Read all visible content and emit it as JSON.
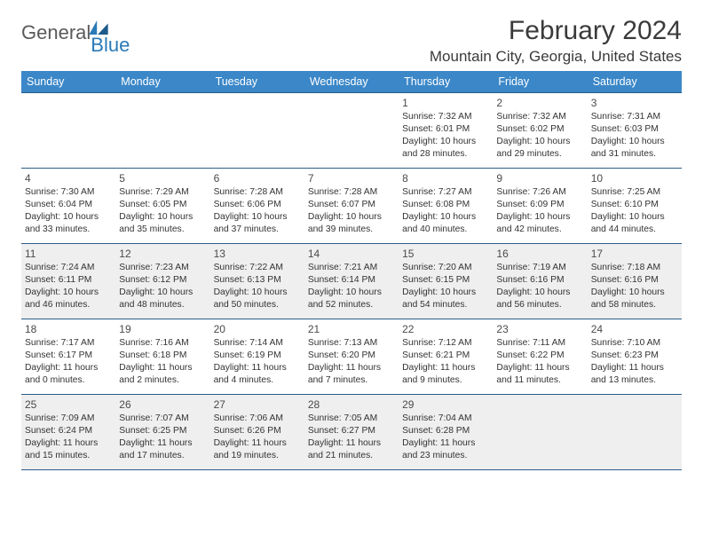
{
  "brand": {
    "name_part1": "General",
    "name_part2": "Blue"
  },
  "header": {
    "title": "February 2024",
    "location": "Mountain City, Georgia, United States"
  },
  "colors": {
    "header_bg": "#3b87c8",
    "header_text": "#ffffff",
    "rule": "#2b5d87",
    "shade": "#efefef",
    "brand_gray": "#5a5a5a",
    "brand_blue": "#2a7ab8"
  },
  "days_of_week": [
    "Sunday",
    "Monday",
    "Tuesday",
    "Wednesday",
    "Thursday",
    "Friday",
    "Saturday"
  ],
  "weeks": [
    [
      null,
      null,
      null,
      null,
      {
        "n": "1",
        "sunrise": "7:32 AM",
        "sunset": "6:01 PM",
        "day": "10 hours and 28 minutes."
      },
      {
        "n": "2",
        "sunrise": "7:32 AM",
        "sunset": "6:02 PM",
        "day": "10 hours and 29 minutes."
      },
      {
        "n": "3",
        "sunrise": "7:31 AM",
        "sunset": "6:03 PM",
        "day": "10 hours and 31 minutes."
      }
    ],
    [
      {
        "n": "4",
        "sunrise": "7:30 AM",
        "sunset": "6:04 PM",
        "day": "10 hours and 33 minutes."
      },
      {
        "n": "5",
        "sunrise": "7:29 AM",
        "sunset": "6:05 PM",
        "day": "10 hours and 35 minutes."
      },
      {
        "n": "6",
        "sunrise": "7:28 AM",
        "sunset": "6:06 PM",
        "day": "10 hours and 37 minutes."
      },
      {
        "n": "7",
        "sunrise": "7:28 AM",
        "sunset": "6:07 PM",
        "day": "10 hours and 39 minutes."
      },
      {
        "n": "8",
        "sunrise": "7:27 AM",
        "sunset": "6:08 PM",
        "day": "10 hours and 40 minutes."
      },
      {
        "n": "9",
        "sunrise": "7:26 AM",
        "sunset": "6:09 PM",
        "day": "10 hours and 42 minutes."
      },
      {
        "n": "10",
        "sunrise": "7:25 AM",
        "sunset": "6:10 PM",
        "day": "10 hours and 44 minutes."
      }
    ],
    [
      {
        "n": "11",
        "sunrise": "7:24 AM",
        "sunset": "6:11 PM",
        "day": "10 hours and 46 minutes."
      },
      {
        "n": "12",
        "sunrise": "7:23 AM",
        "sunset": "6:12 PM",
        "day": "10 hours and 48 minutes."
      },
      {
        "n": "13",
        "sunrise": "7:22 AM",
        "sunset": "6:13 PM",
        "day": "10 hours and 50 minutes."
      },
      {
        "n": "14",
        "sunrise": "7:21 AM",
        "sunset": "6:14 PM",
        "day": "10 hours and 52 minutes."
      },
      {
        "n": "15",
        "sunrise": "7:20 AM",
        "sunset": "6:15 PM",
        "day": "10 hours and 54 minutes."
      },
      {
        "n": "16",
        "sunrise": "7:19 AM",
        "sunset": "6:16 PM",
        "day": "10 hours and 56 minutes."
      },
      {
        "n": "17",
        "sunrise": "7:18 AM",
        "sunset": "6:16 PM",
        "day": "10 hours and 58 minutes."
      }
    ],
    [
      {
        "n": "18",
        "sunrise": "7:17 AM",
        "sunset": "6:17 PM",
        "day": "11 hours and 0 minutes."
      },
      {
        "n": "19",
        "sunrise": "7:16 AM",
        "sunset": "6:18 PM",
        "day": "11 hours and 2 minutes."
      },
      {
        "n": "20",
        "sunrise": "7:14 AM",
        "sunset": "6:19 PM",
        "day": "11 hours and 4 minutes."
      },
      {
        "n": "21",
        "sunrise": "7:13 AM",
        "sunset": "6:20 PM",
        "day": "11 hours and 7 minutes."
      },
      {
        "n": "22",
        "sunrise": "7:12 AM",
        "sunset": "6:21 PM",
        "day": "11 hours and 9 minutes."
      },
      {
        "n": "23",
        "sunrise": "7:11 AM",
        "sunset": "6:22 PM",
        "day": "11 hours and 11 minutes."
      },
      {
        "n": "24",
        "sunrise": "7:10 AM",
        "sunset": "6:23 PM",
        "day": "11 hours and 13 minutes."
      }
    ],
    [
      {
        "n": "25",
        "sunrise": "7:09 AM",
        "sunset": "6:24 PM",
        "day": "11 hours and 15 minutes."
      },
      {
        "n": "26",
        "sunrise": "7:07 AM",
        "sunset": "6:25 PM",
        "day": "11 hours and 17 minutes."
      },
      {
        "n": "27",
        "sunrise": "7:06 AM",
        "sunset": "6:26 PM",
        "day": "11 hours and 19 minutes."
      },
      {
        "n": "28",
        "sunrise": "7:05 AM",
        "sunset": "6:27 PM",
        "day": "11 hours and 21 minutes."
      },
      {
        "n": "29",
        "sunrise": "7:04 AM",
        "sunset": "6:28 PM",
        "day": "11 hours and 23 minutes."
      },
      null,
      null
    ]
  ],
  "labels": {
    "sunrise": "Sunrise: ",
    "sunset": "Sunset: ",
    "daylight": "Daylight: "
  },
  "shaded_weeks": [
    2,
    4
  ]
}
